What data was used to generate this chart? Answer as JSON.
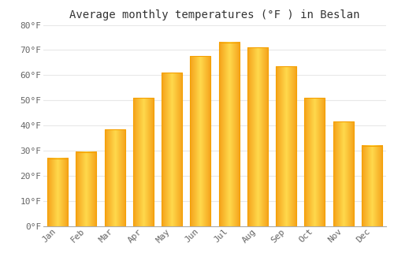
{
  "title": "Average monthly temperatures (°F ) in Beslan",
  "months": [
    "Jan",
    "Feb",
    "Mar",
    "Apr",
    "May",
    "Jun",
    "Jul",
    "Aug",
    "Sep",
    "Oct",
    "Nov",
    "Dec"
  ],
  "values": [
    27,
    29.5,
    38.5,
    51,
    61,
    67.5,
    73,
    71,
    63.5,
    51,
    41.5,
    32
  ],
  "bar_color_light": "#FFCC44",
  "bar_color_dark": "#F5A000",
  "background_color": "#FFFFFF",
  "grid_color": "#E8E8E8",
  "ylim": [
    0,
    80
  ],
  "yticks": [
    0,
    10,
    20,
    30,
    40,
    50,
    60,
    70,
    80
  ],
  "ytick_labels": [
    "0°F",
    "10°F",
    "20°F",
    "30°F",
    "40°F",
    "50°F",
    "60°F",
    "70°F",
    "80°F"
  ],
  "title_fontsize": 10,
  "tick_fontsize": 8,
  "font_family": "monospace"
}
